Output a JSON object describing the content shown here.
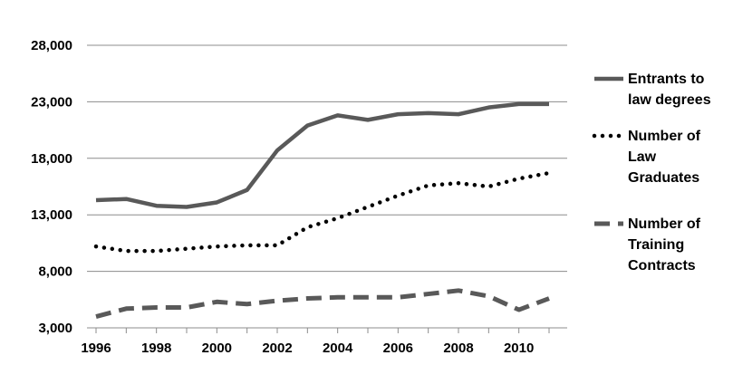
{
  "chart_data": {
    "type": "line",
    "x": [
      1996,
      1997,
      1998,
      1999,
      2000,
      2001,
      2002,
      2003,
      2004,
      2005,
      2006,
      2007,
      2008,
      2009,
      2010,
      2011
    ],
    "xticks": [
      "1996",
      "1998",
      "2000",
      "2002",
      "2004",
      "2006",
      "2008",
      "2010"
    ],
    "yticks": [
      "3,000",
      "8,000",
      "13,000",
      "18,000",
      "23,000",
      "28,000"
    ],
    "ylim": [
      3000,
      28000
    ],
    "xlim": [
      1995.7,
      2011.6
    ],
    "grid": "horizontal",
    "legend_position": "right",
    "series": [
      {
        "name": "Entrants to law degrees",
        "label_lines": [
          "Entrants to",
          "law degrees"
        ],
        "style": "solid",
        "color": "#595959",
        "values": [
          14300,
          14400,
          13800,
          13700,
          14100,
          15200,
          18700,
          20900,
          21800,
          21400,
          21900,
          22000,
          21900,
          22500,
          22800,
          22800
        ]
      },
      {
        "name": "Number of Law Graduates",
        "label_lines": [
          "Number of",
          "Law",
          "Graduates"
        ],
        "style": "dotted",
        "color": "#000000",
        "values": [
          10200,
          9800,
          9800,
          10000,
          10200,
          10300,
          10300,
          11900,
          12700,
          13700,
          14700,
          15600,
          15800,
          15500,
          16200,
          16700
        ]
      },
      {
        "name": "Number of Training Contracts",
        "label_lines": [
          "Number of",
          "Training",
          "Contracts"
        ],
        "style": "dashed",
        "color": "#595959",
        "values": [
          4000,
          4700,
          4800,
          4800,
          5300,
          5100,
          5400,
          5600,
          5700,
          5700,
          5700,
          6000,
          6300,
          5800,
          4600,
          5600
        ]
      }
    ]
  }
}
